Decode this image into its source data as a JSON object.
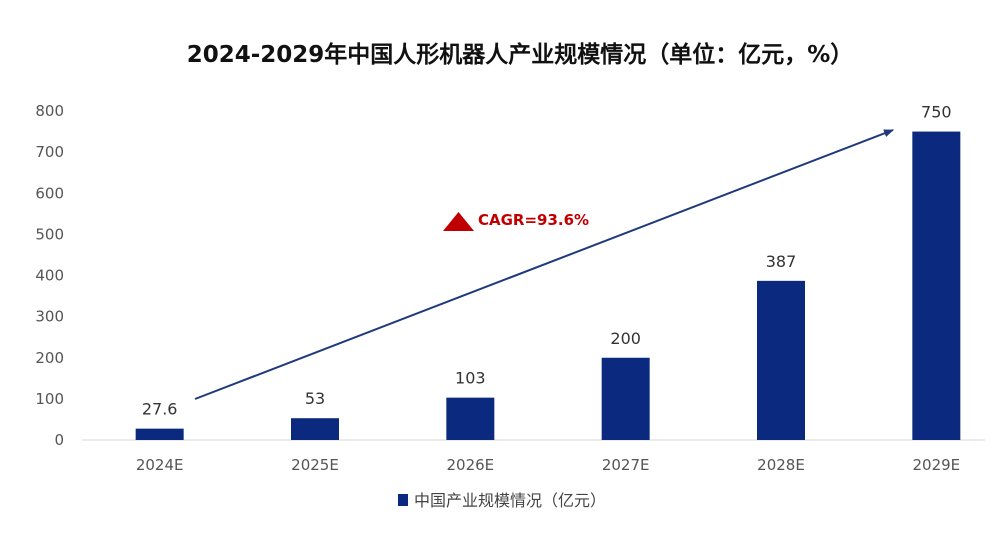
{
  "chart_data": {
    "type": "bar",
    "title": "2024-2029年中国人形机器人产业规模情况（单位：亿元，%）",
    "categories": [
      "2024E",
      "2025E",
      "2026E",
      "2027E",
      "2028E",
      "2029E"
    ],
    "series": [
      {
        "name": "中国产业规模情况（亿元）",
        "values": [
          27.6,
          53,
          103,
          200,
          387,
          750
        ]
      }
    ],
    "data_labels": [
      "27.6",
      "53",
      "103",
      "200",
      "387",
      "750"
    ],
    "ylim": [
      0,
      800
    ],
    "yticks": [
      0,
      100,
      200,
      300,
      400,
      500,
      600,
      700,
      800
    ],
    "grid": false,
    "legend_position": "bottom",
    "annotation": {
      "text": "CAGR=93.6%",
      "color": "#C00000"
    },
    "colors": {
      "bar": "#0B2A7F",
      "arrow": "#1F3A7A",
      "axis": "#D9D9D9"
    }
  }
}
